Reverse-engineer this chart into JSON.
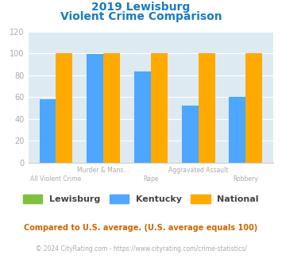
{
  "title_line1": "2019 Lewisburg",
  "title_line2": "Violent Crime Comparison",
  "title_color": "#1a7abf",
  "categories": [
    "All Violent Crime",
    "Murder & Mans...",
    "Rape",
    "Aggravated Assault",
    "Robbery"
  ],
  "label_top": [
    "",
    "Murder & Mans...",
    "",
    "Aggravated Assault",
    ""
  ],
  "label_bottom": [
    "All Violent Crime",
    "",
    "Rape",
    "",
    "Robbery"
  ],
  "lewisburg": [
    0,
    0,
    0,
    0,
    0
  ],
  "kentucky": [
    58,
    99,
    83,
    52,
    60
  ],
  "national": [
    100,
    100,
    100,
    100,
    100
  ],
  "lewisburg_color": "#80c040",
  "kentucky_color": "#4da6ff",
  "national_color": "#ffaa00",
  "ylim": [
    0,
    120
  ],
  "yticks": [
    0,
    20,
    40,
    60,
    80,
    100,
    120
  ],
  "plot_bg_color": "#ddeaf2",
  "legend_labels": [
    "Lewisburg",
    "Kentucky",
    "National"
  ],
  "footnote1": "Compared to U.S. average. (U.S. average equals 100)",
  "footnote2": "© 2024 CityRating.com - https://www.cityrating.com/crime-statistics/",
  "footnote1_color": "#cc6600",
  "footnote2_color": "#aaaaaa",
  "bar_width": 0.35,
  "tick_label_color": "#aaaaaa",
  "grid_color": "#ffffff",
  "label_top_color": "#aaaaaa",
  "label_bottom_color": "#aaaaaa"
}
